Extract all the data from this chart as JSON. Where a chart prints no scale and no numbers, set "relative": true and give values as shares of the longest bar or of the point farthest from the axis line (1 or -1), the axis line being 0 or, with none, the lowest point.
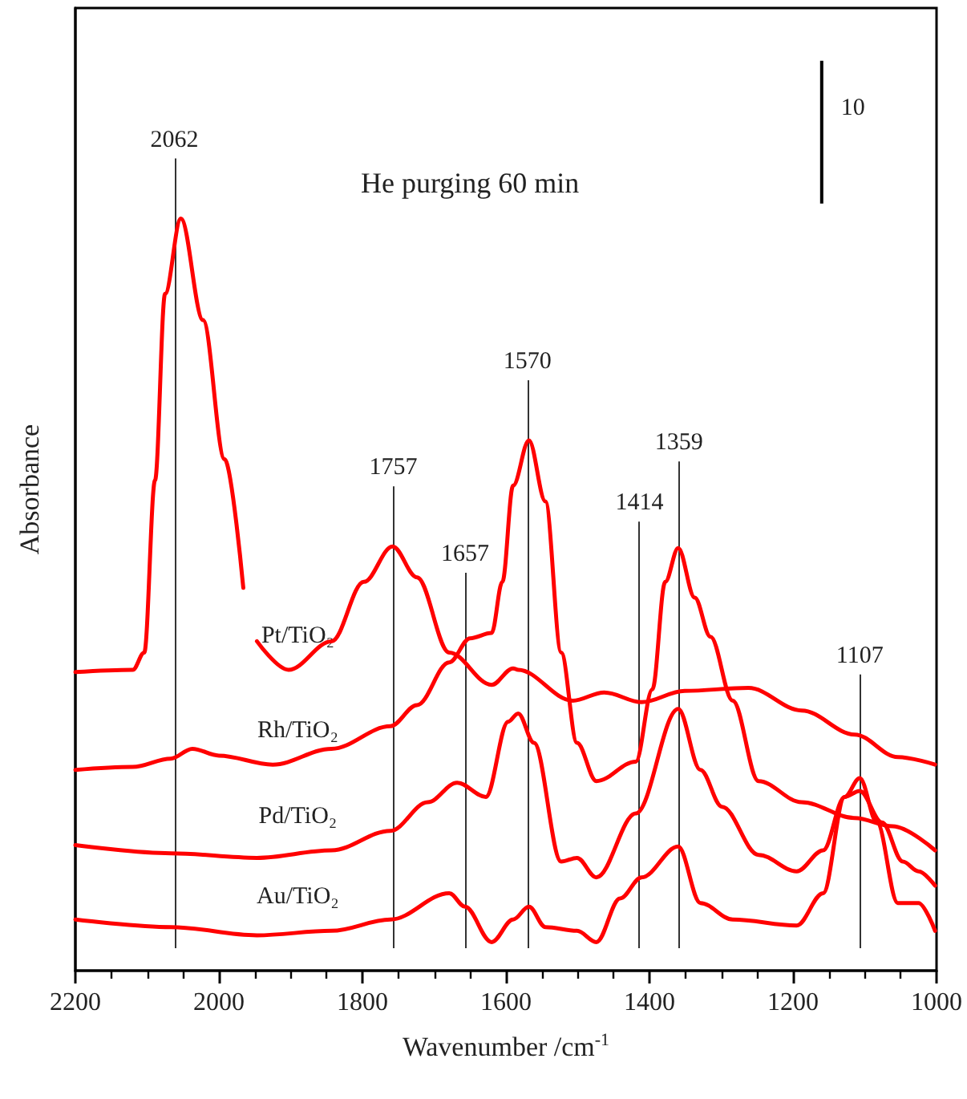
{
  "chart_data": {
    "type": "line",
    "title": "He purging 60 min",
    "xlabel": "Wavenumber /cm$^{-1}$",
    "ylabel": "Absorbance",
    "relative": true,
    "legend": false,
    "grid": false,
    "marker": "none",
    "line_style": "solid",
    "xlim": [
      2200,
      1000
    ],
    "xticks": [
      2200,
      2000,
      1800,
      1600,
      1400,
      1200,
      1000
    ],
    "annotations": [
      "10"
    ],
    "ref_lines": [
      {
        "axis": "x",
        "value": 2062,
        "label": "2062",
        "color": "#333333"
      },
      {
        "axis": "x",
        "value": 1757,
        "label": "1757",
        "color": "#333333"
      },
      {
        "axis": "x",
        "value": 1657,
        "label": "1657",
        "color": "#333333"
      },
      {
        "axis": "x",
        "value": 1570,
        "label": "1570",
        "color": "#333333"
      },
      {
        "axis": "x",
        "value": 1414,
        "label": "1414",
        "color": "#333333"
      },
      {
        "axis": "x",
        "value": 1359,
        "label": "1359",
        "color": "#333333"
      },
      {
        "axis": "x",
        "value": 1107,
        "label": "1107",
        "color": "#333333"
      }
    ],
    "series": [
      {
        "name": "Pt/TiO₂",
        "color": "#ff0000",
        "x": [
          2200,
          2120,
          2104,
          2089,
          2075,
          2053,
          2022,
          1992,
          1966,
          1956,
          1947,
          1903,
          1843,
          1798,
          1758,
          1724,
          1679,
          1620,
          1590,
          1583,
          1507,
          1463,
          1411,
          1351,
          1262,
          1188,
          1114,
          1054,
          1002
        ],
        "values": [
          0.397,
          0.4,
          0.423,
          0.652,
          0.9,
          1.0,
          0.865,
          0.68,
          0.509,
          null,
          0.438,
          0.4,
          0.438,
          0.517,
          0.564,
          0.523,
          0.423,
          0.38,
          0.402,
          0.4,
          0.359,
          0.37,
          0.357,
          0.372,
          0.376,
          0.346,
          0.314,
          0.284,
          0.274
        ]
      },
      {
        "name": "Rh/TiO₂",
        "color": "#ff0000",
        "x": [
          2200,
          2120,
          2067,
          2037,
          2000,
          1925,
          1843,
          1761,
          1724,
          1679,
          1650,
          1620,
          1605,
          1590,
          1568,
          1545,
          1523,
          1501,
          1474,
          1419,
          1396,
          1378,
          1360,
          1337,
          1315,
          1284,
          1248,
          1188,
          1114,
          1061,
          1002
        ],
        "values": [
          0.267,
          0.271,
          0.282,
          0.295,
          0.286,
          0.274,
          0.295,
          0.325,
          0.353,
          0.41,
          0.442,
          0.449,
          0.517,
          0.645,
          0.705,
          0.624,
          0.423,
          0.303,
          0.252,
          0.278,
          0.374,
          0.517,
          0.562,
          0.496,
          0.444,
          0.359,
          0.252,
          0.224,
          0.203,
          0.192,
          0.16
        ]
      },
      {
        "name": "Pd/TiO₂",
        "color": "#ff0000",
        "x": [
          2200,
          2067,
          1947,
          1843,
          1761,
          1709,
          1668,
          1628,
          1597,
          1583,
          1561,
          1523,
          1501,
          1474,
          1419,
          1360,
          1329,
          1299,
          1248,
          1195,
          1158,
          1128,
          1107,
          1076,
          1047,
          1025,
          1002
        ],
        "values": [
          0.167,
          0.156,
          0.15,
          0.16,
          0.186,
          0.224,
          0.25,
          0.231,
          0.331,
          0.342,
          0.303,
          0.145,
          0.15,
          0.124,
          0.209,
          0.348,
          0.267,
          0.218,
          0.154,
          0.132,
          0.16,
          0.231,
          0.239,
          0.197,
          0.145,
          0.132,
          0.113
        ]
      },
      {
        "name": "Au/TiO₂",
        "color": "#ff0000",
        "x": [
          2200,
          2067,
          1947,
          1843,
          1761,
          1679,
          1657,
          1620,
          1590,
          1568,
          1545,
          1501,
          1474,
          1441,
          1411,
          1360,
          1329,
          1284,
          1195,
          1158,
          1128,
          1107,
          1083,
          1054,
          1025,
          1002
        ],
        "values": [
          0.068,
          0.058,
          0.047,
          0.053,
          0.068,
          0.103,
          0.085,
          0.038,
          0.068,
          0.085,
          0.058,
          0.053,
          0.038,
          0.096,
          0.124,
          0.165,
          0.09,
          0.068,
          0.06,
          0.103,
          0.231,
          0.256,
          0.197,
          0.09,
          0.09,
          0.053
        ]
      }
    ]
  }
}
